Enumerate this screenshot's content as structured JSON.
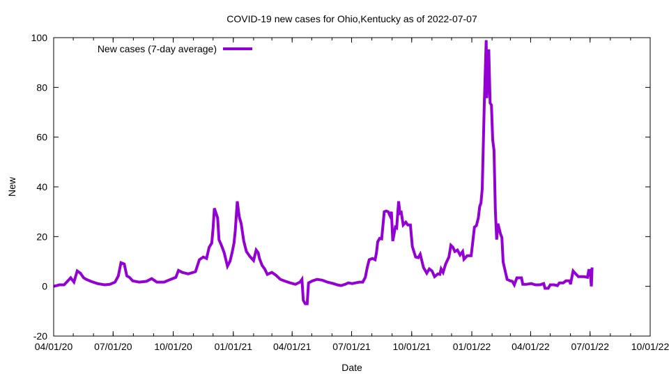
{
  "chart_data": {
    "type": "line",
    "title": "COVID-19 new cases for Ohio,Kentucky as of 2022-07-07",
    "xlabel": "Date",
    "ylabel": "New",
    "x_origin": "2020-04-01",
    "x_unit": "days since origin",
    "xlim_dates": [
      "2020-04-01",
      "2022-10-01"
    ],
    "ylim": [
      -20,
      100
    ],
    "yticks": [
      -20,
      0,
      20,
      40,
      60,
      80,
      100
    ],
    "xticks": [
      {
        "date": "2020-04-01",
        "label": "04/01/20"
      },
      {
        "date": "2020-07-01",
        "label": "07/01/20"
      },
      {
        "date": "2020-10-01",
        "label": "10/01/20"
      },
      {
        "date": "2021-01-01",
        "label": "01/01/21"
      },
      {
        "date": "2021-04-01",
        "label": "04/01/21"
      },
      {
        "date": "2021-07-01",
        "label": "07/01/21"
      },
      {
        "date": "2021-10-01",
        "label": "10/01/21"
      },
      {
        "date": "2022-01-01",
        "label": "01/01/22"
      },
      {
        "date": "2022-04-01",
        "label": "04/01/22"
      },
      {
        "date": "2022-07-01",
        "label": "07/01/22"
      },
      {
        "date": "2022-10-01",
        "label": "10/01/22"
      }
    ],
    "grid": false,
    "legend_position": "top-left",
    "series": [
      {
        "name": "New cases (7-day average)",
        "color": "#9400d3",
        "points": [
          [
            0,
            0
          ],
          [
            9,
            0.6
          ],
          [
            16,
            0.6
          ],
          [
            21,
            2.0
          ],
          [
            26,
            3.4
          ],
          [
            31,
            1.7
          ],
          [
            36,
            6.2
          ],
          [
            41,
            5.3
          ],
          [
            46,
            3.4
          ],
          [
            50,
            2.8
          ],
          [
            57,
            2.0
          ],
          [
            67,
            1.1
          ],
          [
            78,
            0.6
          ],
          [
            86,
            0.8
          ],
          [
            94,
            1.7
          ],
          [
            99,
            4.2
          ],
          [
            103,
            9.5
          ],
          [
            108,
            9.0
          ],
          [
            112,
            4.2
          ],
          [
            116,
            3.6
          ],
          [
            121,
            2.2
          ],
          [
            131,
            1.7
          ],
          [
            142,
            2.0
          ],
          [
            150,
            3.1
          ],
          [
            158,
            1.7
          ],
          [
            169,
            1.7
          ],
          [
            179,
            2.8
          ],
          [
            187,
            3.6
          ],
          [
            191,
            6.4
          ],
          [
            197,
            5.6
          ],
          [
            206,
            5.0
          ],
          [
            217,
            5.9
          ],
          [
            223,
            10.7
          ],
          [
            229,
            11.8
          ],
          [
            234,
            11.2
          ],
          [
            238,
            15.7
          ],
          [
            242,
            17.4
          ],
          [
            244,
            23.5
          ],
          [
            246,
            31.4
          ],
          [
            251,
            27.5
          ],
          [
            253,
            18.8
          ],
          [
            257,
            16.3
          ],
          [
            261,
            13.5
          ],
          [
            266,
            8.1
          ],
          [
            270,
            10.1
          ],
          [
            273,
            13.5
          ],
          [
            276,
            17.4
          ],
          [
            278,
            22.4
          ],
          [
            281,
            34.2
          ],
          [
            284,
            28.0
          ],
          [
            287,
            25.2
          ],
          [
            291,
            18.2
          ],
          [
            295,
            14.0
          ],
          [
            300,
            12.1
          ],
          [
            306,
            10.4
          ],
          [
            310,
            14.6
          ],
          [
            313,
            13.5
          ],
          [
            315,
            11.2
          ],
          [
            319,
            8.4
          ],
          [
            323,
            7.0
          ],
          [
            327,
            4.8
          ],
          [
            334,
            5.6
          ],
          [
            340,
            4.5
          ],
          [
            347,
            2.8
          ],
          [
            355,
            2.0
          ],
          [
            362,
            1.4
          ],
          [
            370,
            0.8
          ],
          [
            377,
            1.7
          ],
          [
            380,
            2.8
          ],
          [
            382,
            -5.6
          ],
          [
            385,
            -7.0
          ],
          [
            388,
            -7.0
          ],
          [
            390,
            1.4
          ],
          [
            396,
            2.2
          ],
          [
            403,
            2.8
          ],
          [
            411,
            2.5
          ],
          [
            419,
            1.7
          ],
          [
            428,
            1.1
          ],
          [
            434,
            0.6
          ],
          [
            440,
            0.3
          ],
          [
            446,
            0.8
          ],
          [
            451,
            1.4
          ],
          [
            457,
            1.1
          ],
          [
            462,
            1.4
          ],
          [
            468,
            1.7
          ],
          [
            473,
            1.7
          ],
          [
            477,
            3.6
          ],
          [
            480,
            7.6
          ],
          [
            483,
            10.7
          ],
          [
            488,
            11.2
          ],
          [
            492,
            10.7
          ],
          [
            494,
            13.5
          ],
          [
            496,
            17.9
          ],
          [
            499,
            19.3
          ],
          [
            502,
            19.1
          ],
          [
            506,
            30.0
          ],
          [
            509,
            30.3
          ],
          [
            512,
            30.0
          ],
          [
            515,
            28.3
          ],
          [
            517,
            30.0
          ],
          [
            519,
            18.2
          ],
          [
            523,
            23.8
          ],
          [
            525,
            23.5
          ],
          [
            528,
            34.2
          ],
          [
            530,
            29.4
          ],
          [
            532,
            29.7
          ],
          [
            535,
            24.7
          ],
          [
            539,
            25.8
          ],
          [
            542,
            24.7
          ],
          [
            546,
            24.7
          ],
          [
            549,
            16.0
          ],
          [
            554,
            11.8
          ],
          [
            558,
            11.5
          ],
          [
            561,
            12.9
          ],
          [
            566,
            7.6
          ],
          [
            571,
            5.3
          ],
          [
            575,
            7.0
          ],
          [
            579,
            6.2
          ],
          [
            583,
            3.9
          ],
          [
            588,
            5.0
          ],
          [
            591,
            4.8
          ],
          [
            593,
            7.0
          ],
          [
            596,
            5.6
          ],
          [
            600,
            9.0
          ],
          [
            605,
            11.8
          ],
          [
            608,
            16.5
          ],
          [
            611,
            15.7
          ],
          [
            614,
            14.0
          ],
          [
            618,
            14.6
          ],
          [
            622,
            12.6
          ],
          [
            626,
            14.0
          ],
          [
            628,
            10.9
          ],
          [
            633,
            12.3
          ],
          [
            639,
            12.3
          ],
          [
            641,
            16.8
          ],
          [
            644,
            23.8
          ],
          [
            647,
            24.4
          ],
          [
            650,
            27.5
          ],
          [
            652,
            32.0
          ],
          [
            654,
            33.6
          ],
          [
            656,
            39.2
          ],
          [
            659,
            72.9
          ],
          [
            662,
            99.0
          ],
          [
            663,
            75.7
          ],
          [
            666,
            95.3
          ],
          [
            668,
            73.7
          ],
          [
            670,
            72.9
          ],
          [
            672,
            58.9
          ],
          [
            674,
            54.7
          ],
          [
            676,
            30.8
          ],
          [
            678,
            18.8
          ],
          [
            680,
            25.2
          ],
          [
            684,
            21.0
          ],
          [
            686,
            19.6
          ],
          [
            688,
            9.8
          ],
          [
            691,
            6.2
          ],
          [
            694,
            2.8
          ],
          [
            699,
            2.2
          ],
          [
            702,
            2.0
          ],
          [
            705,
            0.6
          ],
          [
            709,
            3.4
          ],
          [
            716,
            3.4
          ],
          [
            718,
            0.8
          ],
          [
            723,
            0.8
          ],
          [
            731,
            1.1
          ],
          [
            737,
            0.6
          ],
          [
            744,
            0.6
          ],
          [
            750,
            1.1
          ],
          [
            752,
            -0.8
          ],
          [
            757,
            -0.8
          ],
          [
            760,
            0.6
          ],
          [
            766,
            0.6
          ],
          [
            771,
            0.3
          ],
          [
            774,
            1.4
          ],
          [
            780,
            1.4
          ],
          [
            784,
            2.2
          ],
          [
            790,
            2.2
          ],
          [
            791,
            0.8
          ],
          [
            795,
            6.2
          ],
          [
            799,
            5.0
          ],
          [
            803,
            3.9
          ],
          [
            812,
            3.9
          ],
          [
            817,
            3.6
          ],
          [
            819,
            6.4
          ],
          [
            821,
            6.4
          ],
          [
            823,
            0.0
          ],
          [
            824,
            7.6
          ]
        ]
      }
    ]
  }
}
